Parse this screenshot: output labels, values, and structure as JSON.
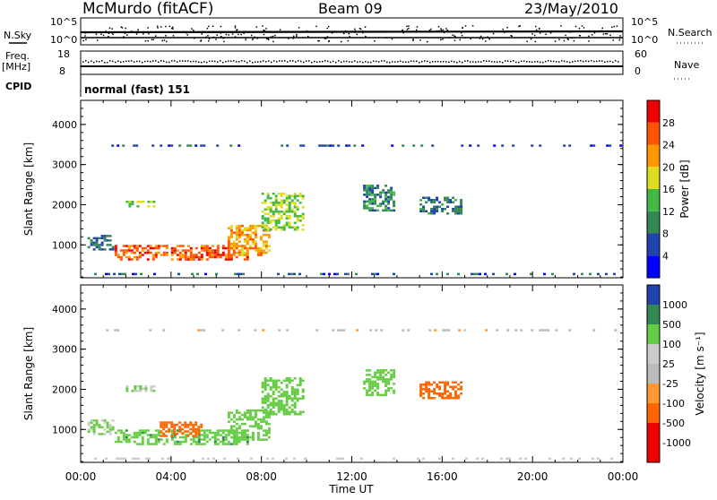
{
  "header": {
    "station": "McMurdo (fitACF)",
    "beam": "Beam 09",
    "date": "23/May/2010"
  },
  "status_panel": {
    "nsky_label": "N.Sky",
    "nsky_ticks": [
      "10^5",
      "10^0"
    ],
    "nsearch_label": "N.Search",
    "nsearch_ticks": [
      "10^5",
      "10^0"
    ],
    "freq_label": "Freq.",
    "freq_unit": "[MHz]",
    "freq_ticks": [
      "18",
      "8"
    ],
    "nave_label": "Nave",
    "nave_ticks": [
      "60",
      "0"
    ],
    "cpid_label": "CPID",
    "cpid_value": "normal (fast) 151"
  },
  "x_axis": {
    "title": "Time UT",
    "ticks": [
      "00:00",
      "04:00",
      "08:00",
      "12:00",
      "16:00",
      "20:00",
      "00:00"
    ]
  },
  "chart_data": [
    {
      "type": "heatmap",
      "parameter": "Power",
      "ylabel": "Slant Range [km]",
      "ylim": [
        180,
        4600
      ],
      "y_ticks": [
        "1000",
        "2000",
        "3000",
        "4000"
      ],
      "x_range_hours": [
        0,
        24
      ],
      "colorbar": {
        "title": "Power [dB]",
        "range": [
          0,
          32
        ],
        "labels": [
          "28",
          "24",
          "20",
          "16",
          "12",
          "8",
          "4"
        ],
        "colors": [
          "#0000ff",
          "#2244aa",
          "#338855",
          "#44b844",
          "#dddd22",
          "#ff9900",
          "#ff5500",
          "#ee0000"
        ]
      },
      "echo_regions": [
        {
          "t_start": 0.3,
          "t_end": 1.5,
          "r_low": 850,
          "r_high": 1250,
          "value": 8
        },
        {
          "t_start": 1.5,
          "t_end": 7.5,
          "r_low": 600,
          "r_high": 1000,
          "value": 26
        },
        {
          "t_start": 6.5,
          "t_end": 8.5,
          "r_low": 700,
          "r_high": 1500,
          "value": 22
        },
        {
          "t_start": 8.0,
          "t_end": 10.0,
          "r_low": 1300,
          "r_high": 2300,
          "value": 16
        },
        {
          "t_start": 2.0,
          "t_end": 3.5,
          "r_low": 1900,
          "r_high": 2100,
          "value": 16
        },
        {
          "t_start": 12.5,
          "t_end": 14.0,
          "r_low": 1800,
          "r_high": 2500,
          "value": 10
        },
        {
          "t_start": 15.0,
          "t_end": 17.0,
          "r_low": 1700,
          "r_high": 2200,
          "value": 9
        },
        {
          "t_start": 1.0,
          "t_end": 24.0,
          "r_low": 3400,
          "r_high": 3500,
          "value": 6
        },
        {
          "t_start": 0.0,
          "t_end": 24.0,
          "r_low": 200,
          "r_high": 300,
          "value": 6
        }
      ]
    },
    {
      "type": "heatmap",
      "parameter": "Velocity",
      "ylabel": "Slant Range [km]",
      "ylim": [
        180,
        4600
      ],
      "y_ticks": [
        "1000",
        "2000",
        "3000",
        "4000"
      ],
      "x_range_hours": [
        0,
        24
      ],
      "colorbar": {
        "title": "Velocity [m s⁻¹]",
        "labels": [
          "1000",
          "500",
          "100",
          "25",
          "-25",
          "-100",
          "-500",
          "-1000"
        ],
        "colors": [
          "#ee0000",
          "#ff6600",
          "#ff9933",
          "#dddddd",
          "#bbbbbb",
          "#66cc44",
          "#338855",
          "#2244aa"
        ]
      },
      "echo_regions": [
        {
          "t_start": 0.3,
          "t_end": 1.5,
          "r_low": 850,
          "r_high": 1250,
          "value": 100
        },
        {
          "t_start": 1.5,
          "t_end": 7.5,
          "r_low": 600,
          "r_high": 1000,
          "value": 400
        },
        {
          "t_start": 3.5,
          "t_end": 5.5,
          "r_low": 800,
          "r_high": 1200,
          "value": -300
        },
        {
          "t_start": 6.5,
          "t_end": 8.5,
          "r_low": 700,
          "r_high": 1500,
          "value": 300
        },
        {
          "t_start": 8.0,
          "t_end": 10.0,
          "r_low": 1300,
          "r_high": 2300,
          "value": 200
        },
        {
          "t_start": 2.0,
          "t_end": 3.5,
          "r_low": 1900,
          "r_high": 2100,
          "value": 100
        },
        {
          "t_start": 12.5,
          "t_end": 14.0,
          "r_low": 1800,
          "r_high": 2500,
          "value": 300
        },
        {
          "t_start": 15.0,
          "t_end": 17.0,
          "r_low": 1700,
          "r_high": 2200,
          "value": -300
        },
        {
          "t_start": 1.0,
          "t_end": 24.0,
          "r_low": 3400,
          "r_high": 3500,
          "value": 0
        },
        {
          "t_start": 0.0,
          "t_end": 24.0,
          "r_low": 200,
          "r_high": 300,
          "value": 60
        }
      ]
    }
  ]
}
